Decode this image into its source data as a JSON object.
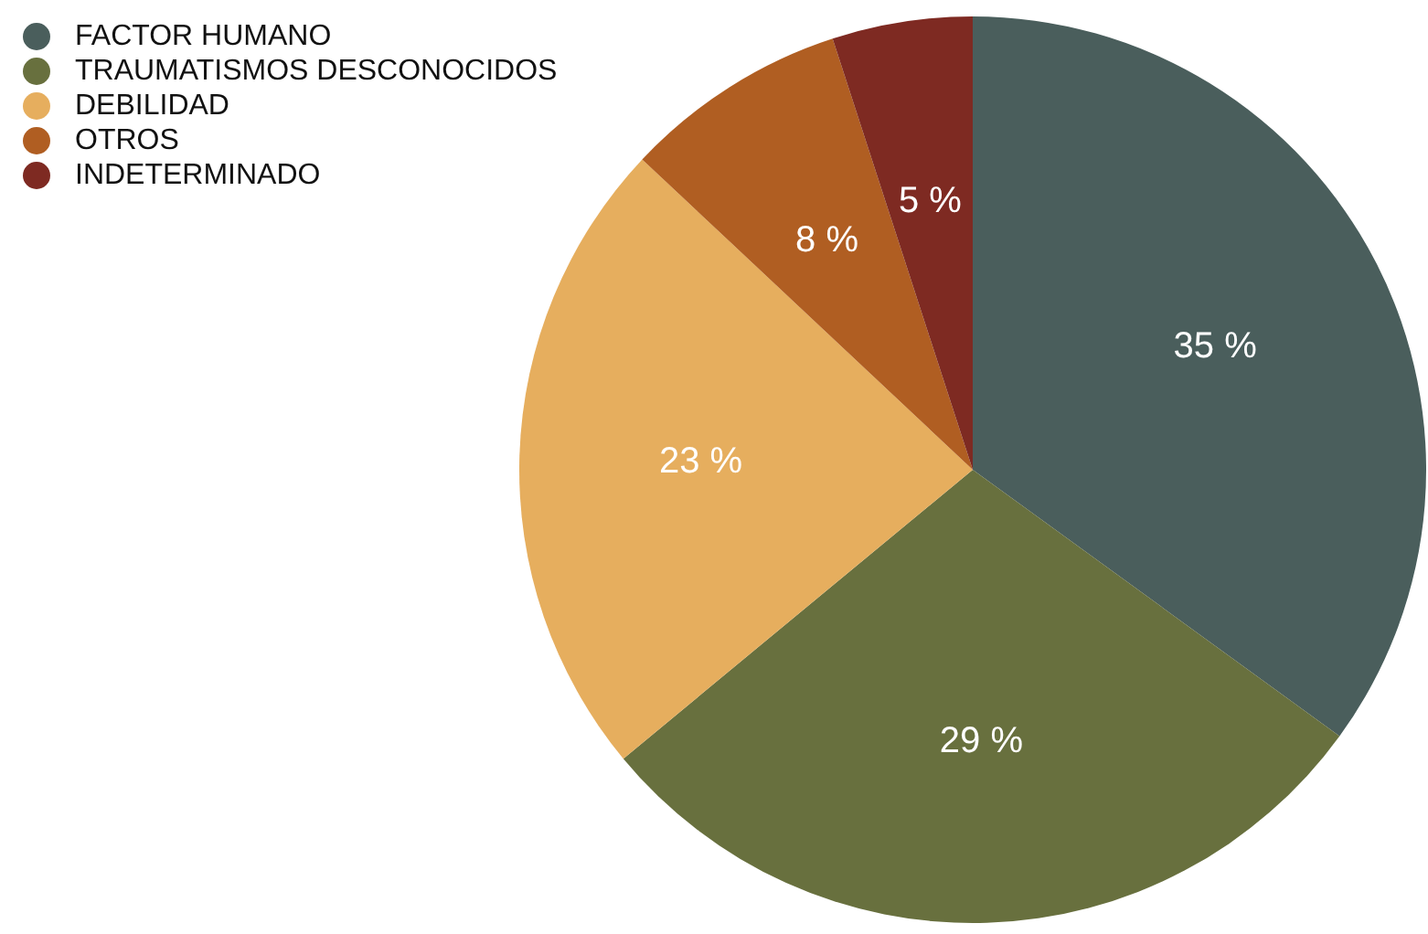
{
  "chart_data": {
    "type": "pie",
    "categories": [
      "FACTOR HUMANO",
      "TRAUMATISMOS DESCONOCIDOS",
      "DEBILIDAD",
      "OTROS",
      "INDETERMINADO"
    ],
    "values": [
      35,
      29,
      23,
      8,
      5
    ],
    "colors": [
      "#4a5e5c",
      "#68703e",
      "#e6ae5e",
      "#b05e22",
      "#7e2a22"
    ],
    "value_labels": [
      "35 %",
      "29 %",
      "23 %",
      "8 %",
      "5 %"
    ],
    "legend": "top left"
  }
}
